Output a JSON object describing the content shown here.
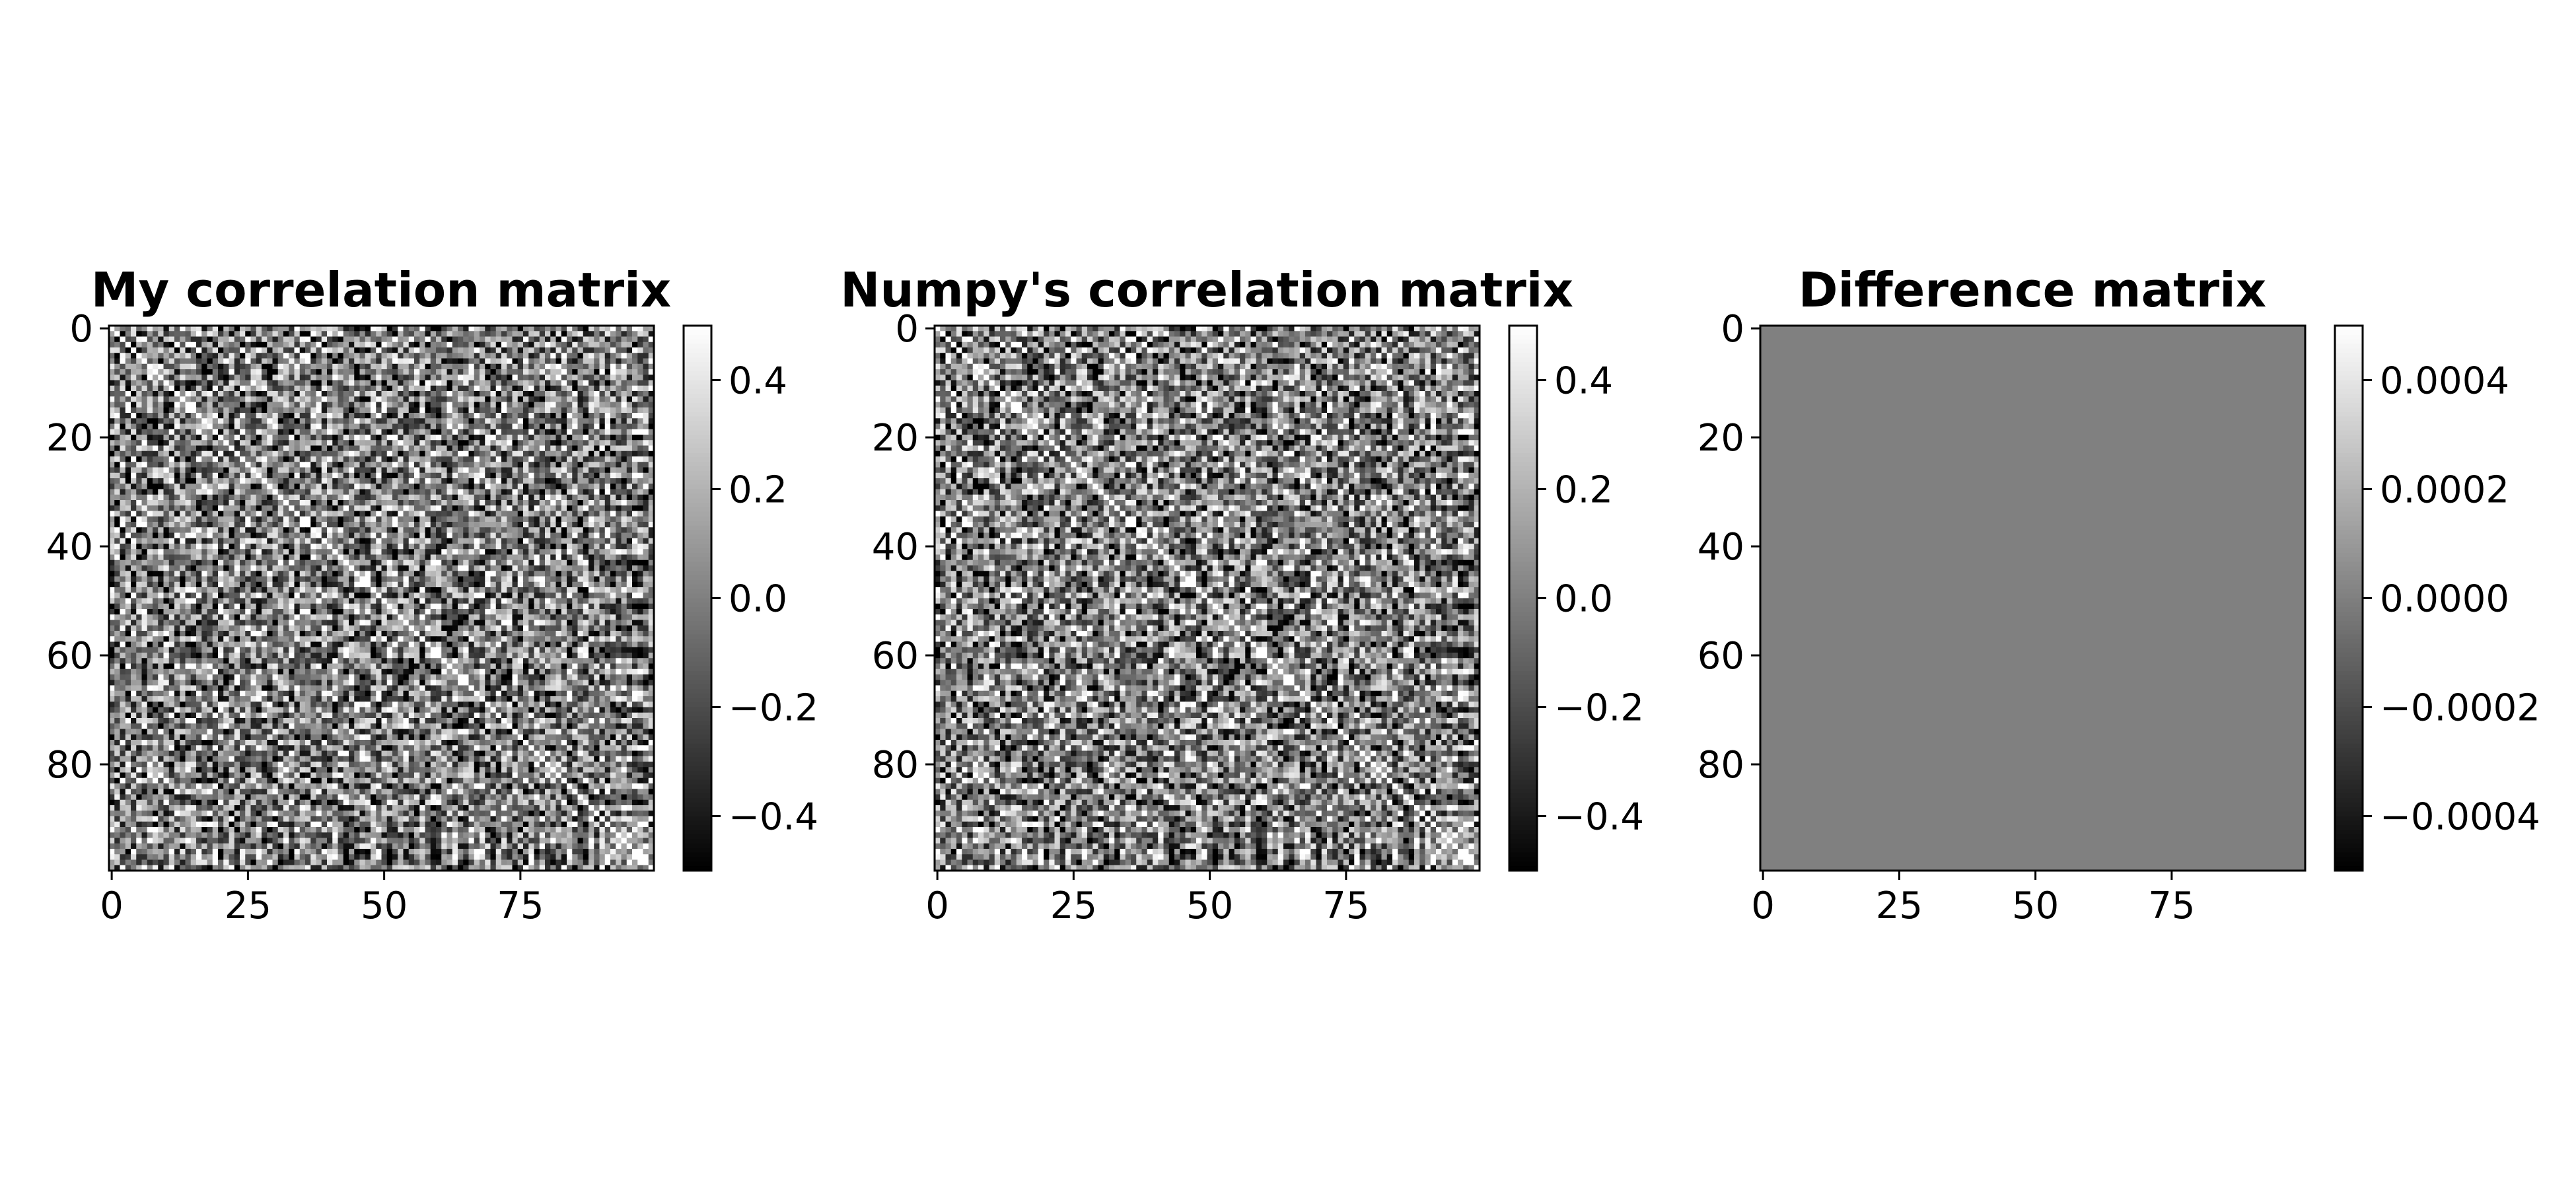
{
  "chart_data": [
    {
      "type": "heatmap",
      "title": "My correlation matrix",
      "xlabel": "",
      "ylabel": "",
      "matrix_size": 100,
      "colormap": "gray",
      "xticks": [
        "0",
        "25",
        "50",
        "75"
      ],
      "yticks": [
        "0",
        "20",
        "40",
        "60",
        "80"
      ],
      "xlim": [
        0,
        99
      ],
      "ylim": [
        99,
        0
      ],
      "value_range": [
        -0.5,
        0.5
      ],
      "colorbar_ticks": [
        "0.4",
        "0.2",
        "0.0",
        "−0.2",
        "−0.4"
      ],
      "colorbar_values": [
        0.4,
        0.2,
        0.0,
        -0.2,
        -0.4
      ],
      "description_values": "100x100 pairwise correlation matrix, values approximately in [-0.5, 0.5] with strong block/stripe structure; diagonal ~1 (clipped white)"
    },
    {
      "type": "heatmap",
      "title": "Numpy's correlation matrix",
      "xlabel": "",
      "ylabel": "",
      "matrix_size": 100,
      "colormap": "gray",
      "xticks": [
        "0",
        "25",
        "50",
        "75"
      ],
      "yticks": [
        "0",
        "20",
        "40",
        "60",
        "80"
      ],
      "xlim": [
        0,
        99
      ],
      "ylim": [
        99,
        0
      ],
      "value_range": [
        -0.5,
        0.5
      ],
      "colorbar_ticks": [
        "0.4",
        "0.2",
        "0.0",
        "−0.2",
        "−0.4"
      ],
      "colorbar_values": [
        0.4,
        0.2,
        0.0,
        -0.2,
        -0.4
      ]
    },
    {
      "type": "heatmap",
      "title": "Difference matrix",
      "xlabel": "",
      "ylabel": "",
      "matrix_size": 100,
      "colormap": "gray",
      "xticks": [
        "0",
        "25",
        "50",
        "75"
      ],
      "yticks": [
        "0",
        "20",
        "40",
        "60",
        "80"
      ],
      "xlim": [
        0,
        99
      ],
      "ylim": [
        99,
        0
      ],
      "value_range": [
        -0.0005,
        0.0005
      ],
      "uniform_value": 0.0,
      "colorbar_ticks": [
        "0.0004",
        "0.0002",
        "0.0000",
        "−0.0002",
        "−0.0004"
      ],
      "colorbar_values": [
        0.0004,
        0.0002,
        0.0,
        -0.0002,
        -0.0004
      ]
    }
  ]
}
